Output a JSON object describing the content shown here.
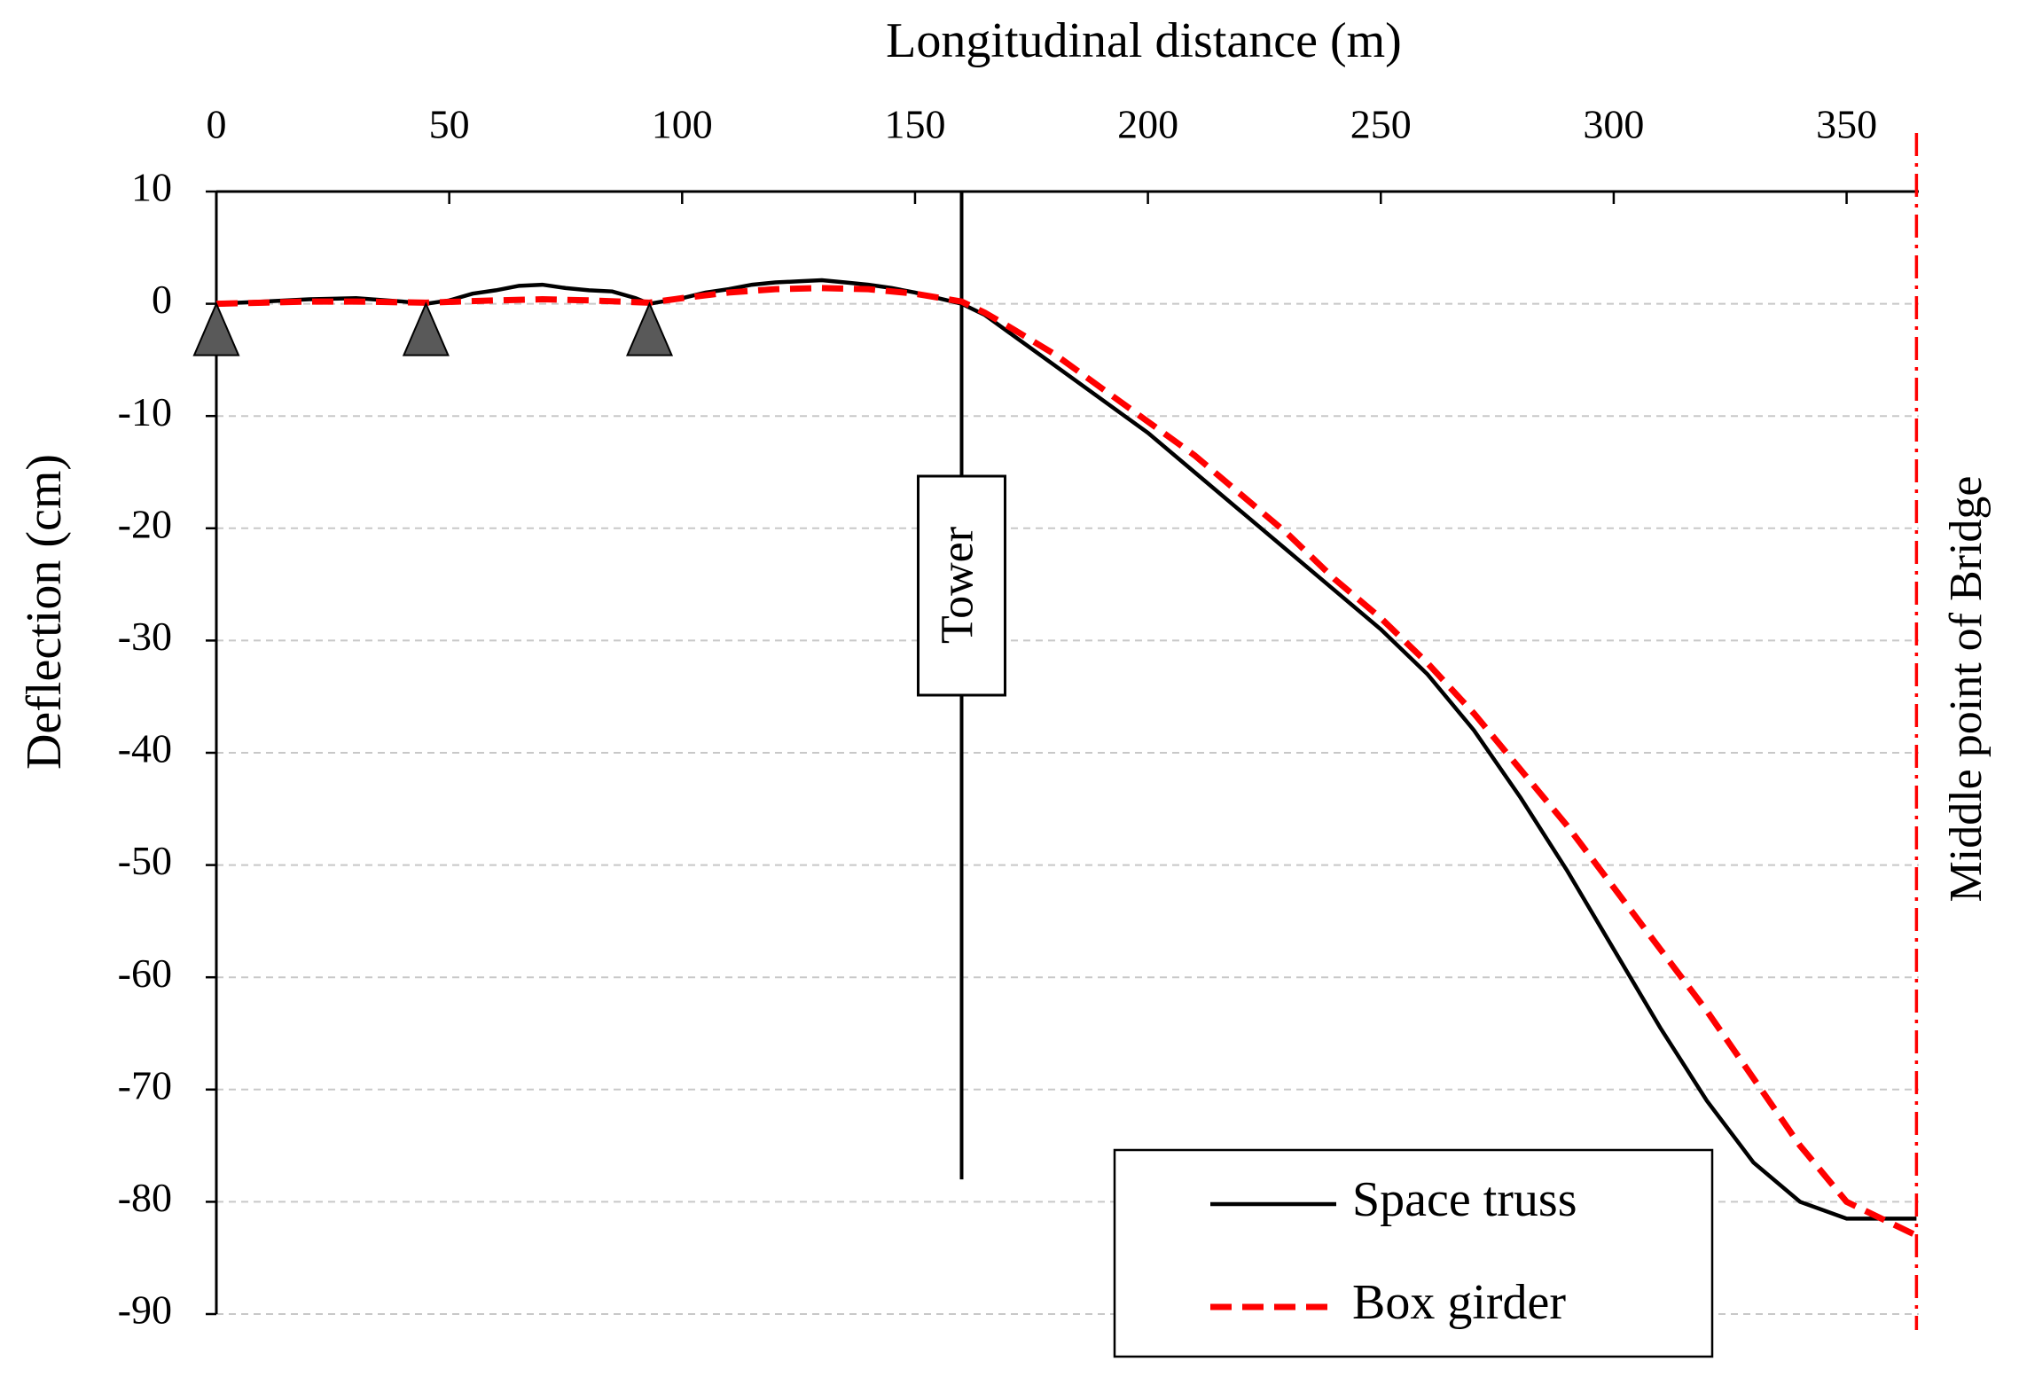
{
  "chart_data": {
    "type": "line",
    "title": "Longitudinal distance (m)",
    "y_label": "Deflection (cm)",
    "xlim": [
      0,
      365.5
    ],
    "xticks": [
      0,
      50,
      100,
      150,
      200,
      250,
      300,
      350
    ],
    "ylim": [
      -90,
      10
    ],
    "yticks": [
      10,
      0,
      -10,
      -20,
      -30,
      -40,
      -50,
      -60,
      -70,
      -80,
      -90
    ],
    "grid": true,
    "legend": "lower right",
    "series": [
      {
        "name": "Space truss",
        "color": "#000000",
        "dash": "solid",
        "x": [
          0,
          10,
          20,
          30,
          40,
          45,
          50,
          55,
          60,
          65,
          70,
          75,
          80,
          85,
          90,
          93,
          100,
          105,
          110,
          115,
          120,
          125,
          130,
          135,
          140,
          145,
          150,
          155,
          160,
          165,
          170,
          180,
          190,
          200,
          210,
          220,
          230,
          240,
          250,
          260,
          270,
          280,
          290,
          300,
          310,
          320,
          330,
          340,
          350,
          360,
          365
        ],
        "values": [
          0,
          0.2,
          0.4,
          0.5,
          0.2,
          0,
          0.3,
          0.9,
          1.2,
          1.6,
          1.7,
          1.4,
          1.2,
          1.1,
          0.5,
          0,
          0.5,
          1.0,
          1.3,
          1.7,
          1.9,
          2.0,
          2.1,
          1.9,
          1.7,
          1.4,
          1.0,
          0.5,
          0,
          -1,
          -2.5,
          -5.5,
          -8.5,
          -11.5,
          -15,
          -18.5,
          -22,
          -25.5,
          -29,
          -33,
          -38,
          -44,
          -50.5,
          -57.5,
          -64.5,
          -71,
          -76.5,
          -80,
          -81.5,
          -81.5,
          -81.5
        ]
      },
      {
        "name": "Box girder",
        "color": "#ff0000",
        "dash": "dashed",
        "x": [
          0,
          10,
          20,
          30,
          45,
          60,
          70,
          80,
          93,
          100,
          110,
          120,
          130,
          140,
          150,
          160,
          165,
          170,
          180,
          190,
          200,
          210,
          220,
          230,
          240,
          250,
          260,
          270,
          280,
          290,
          300,
          310,
          320,
          330,
          340,
          350,
          365
        ],
        "values": [
          0,
          0.1,
          0.2,
          0.2,
          0.1,
          0.3,
          0.4,
          0.3,
          0.1,
          0.5,
          1.0,
          1.3,
          1.4,
          1.3,
          0.9,
          0.2,
          -0.8,
          -2,
          -4.5,
          -7.5,
          -10.5,
          -13.5,
          -17,
          -20.5,
          -24.5,
          -28,
          -32,
          -36.5,
          -41.5,
          -46.5,
          -52,
          -57.5,
          -63,
          -69,
          -75,
          -80,
          -83
        ]
      }
    ],
    "supports": [
      0,
      45,
      93
    ],
    "tower": {
      "label": "Tower",
      "x": 160,
      "bottom": -78
    },
    "midpoint": {
      "label": "Middle point of Bridge",
      "x": 365,
      "color": "#ff0000"
    }
  }
}
